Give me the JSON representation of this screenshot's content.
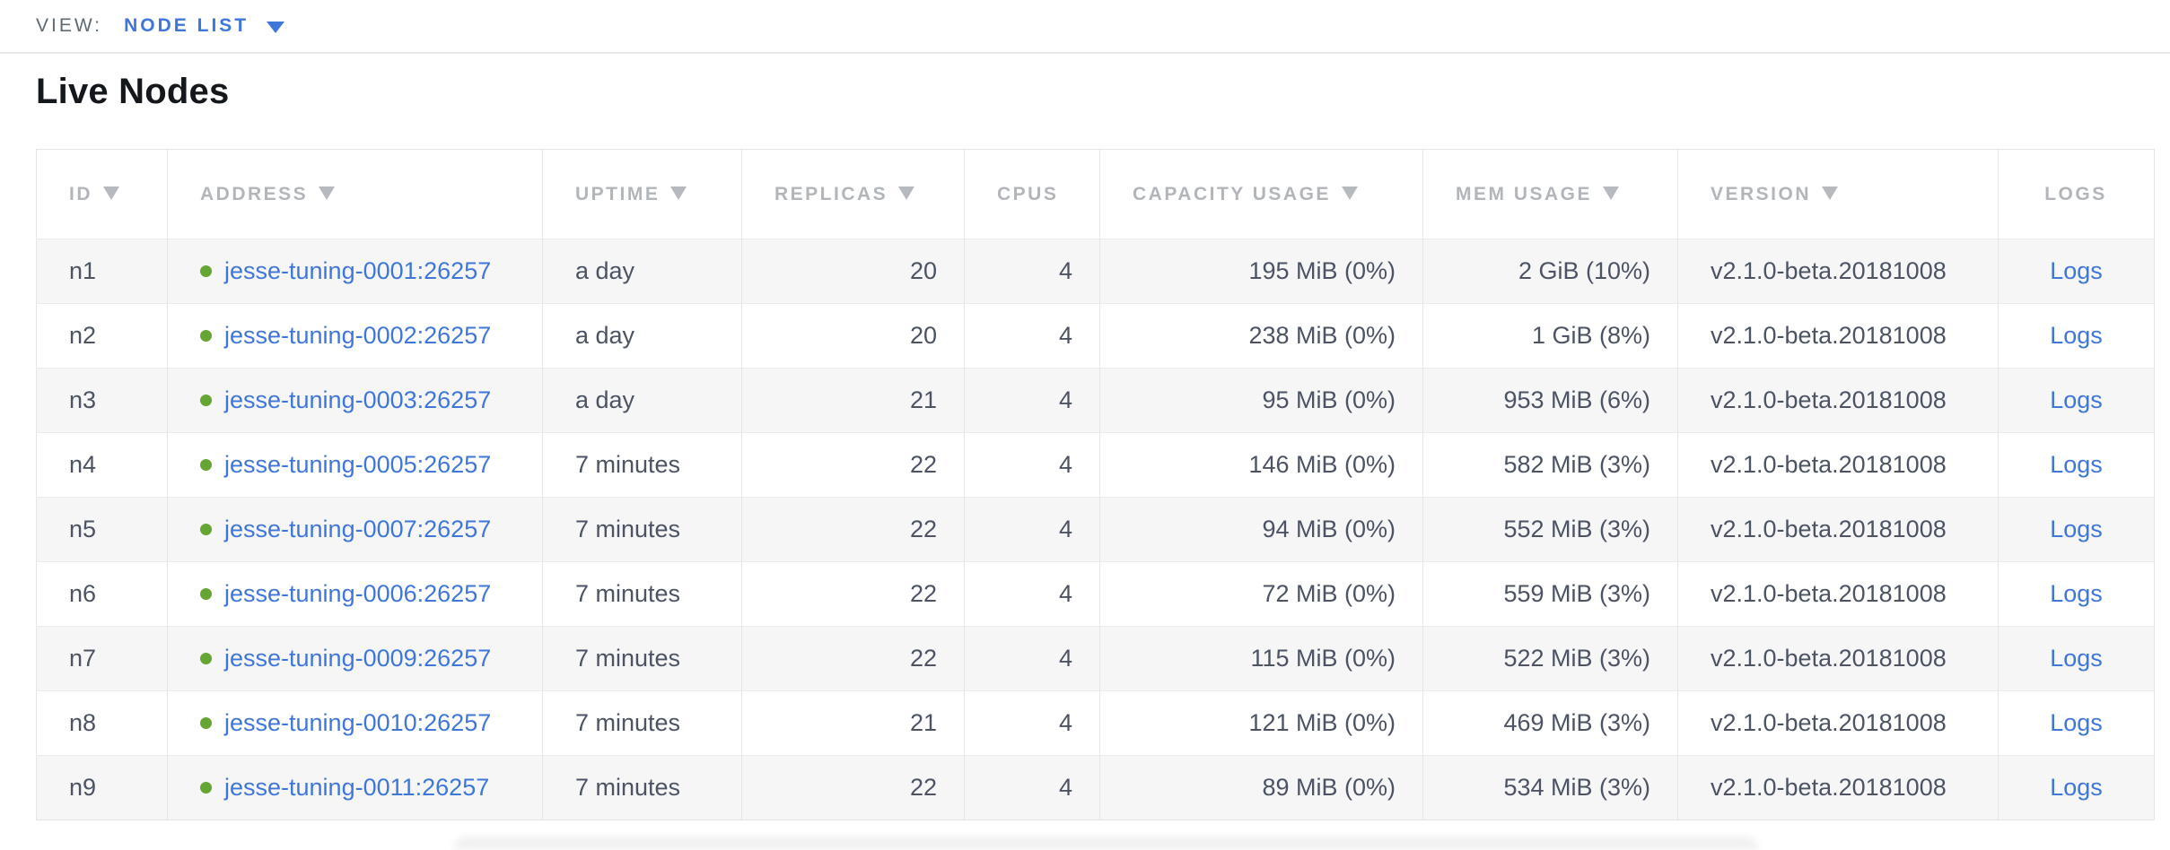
{
  "view_bar": {
    "label": "VIEW:",
    "selected": "NODE LIST"
  },
  "page": {
    "title": "Live Nodes"
  },
  "colors": {
    "accent_blue": "#3f77d9",
    "live_dot_green": "#64a534",
    "header_text": "#b2b6ba",
    "cell_text": "#4b5364",
    "row_alt_background": "#f6f6f7"
  },
  "table": {
    "columns": [
      {
        "key": "id",
        "label": "ID",
        "sortable": true,
        "cell_align": "l"
      },
      {
        "key": "address",
        "label": "ADDRESS",
        "sortable": true,
        "cell_align": "l"
      },
      {
        "key": "uptime",
        "label": "UPTIME",
        "sortable": true,
        "cell_align": "l"
      },
      {
        "key": "replicas",
        "label": "REPLICAS",
        "sortable": true,
        "cell_align": "r"
      },
      {
        "key": "cpus",
        "label": "CPUS",
        "sortable": false,
        "cell_align": "r"
      },
      {
        "key": "capacity",
        "label": "CAPACITY USAGE",
        "sortable": true,
        "cell_align": "r"
      },
      {
        "key": "mem",
        "label": "MEM USAGE",
        "sortable": true,
        "cell_align": "r"
      },
      {
        "key": "version",
        "label": "VERSION",
        "sortable": true,
        "cell_align": "l"
      },
      {
        "key": "logs",
        "label": "LOGS",
        "sortable": false,
        "cell_align": "c"
      }
    ],
    "rows": [
      {
        "id": "n1",
        "status": "live",
        "address": "jesse-tuning-0001:26257",
        "uptime": "a day",
        "replicas": "20",
        "cpus": "4",
        "capacity": "195 MiB (0%)",
        "mem": "2 GiB (10%)",
        "version": "v2.1.0-beta.20181008",
        "logs": "Logs"
      },
      {
        "id": "n2",
        "status": "live",
        "address": "jesse-tuning-0002:26257",
        "uptime": "a day",
        "replicas": "20",
        "cpus": "4",
        "capacity": "238 MiB (0%)",
        "mem": "1 GiB (8%)",
        "version": "v2.1.0-beta.20181008",
        "logs": "Logs"
      },
      {
        "id": "n3",
        "status": "live",
        "address": "jesse-tuning-0003:26257",
        "uptime": "a day",
        "replicas": "21",
        "cpus": "4",
        "capacity": "95 MiB (0%)",
        "mem": "953 MiB (6%)",
        "version": "v2.1.0-beta.20181008",
        "logs": "Logs"
      },
      {
        "id": "n4",
        "status": "live",
        "address": "jesse-tuning-0005:26257",
        "uptime": "7 minutes",
        "replicas": "22",
        "cpus": "4",
        "capacity": "146 MiB (0%)",
        "mem": "582 MiB (3%)",
        "version": "v2.1.0-beta.20181008",
        "logs": "Logs"
      },
      {
        "id": "n5",
        "status": "live",
        "address": "jesse-tuning-0007:26257",
        "uptime": "7 minutes",
        "replicas": "22",
        "cpus": "4",
        "capacity": "94 MiB (0%)",
        "mem": "552 MiB (3%)",
        "version": "v2.1.0-beta.20181008",
        "logs": "Logs"
      },
      {
        "id": "n6",
        "status": "live",
        "address": "jesse-tuning-0006:26257",
        "uptime": "7 minutes",
        "replicas": "22",
        "cpus": "4",
        "capacity": "72 MiB (0%)",
        "mem": "559 MiB (3%)",
        "version": "v2.1.0-beta.20181008",
        "logs": "Logs"
      },
      {
        "id": "n7",
        "status": "live",
        "address": "jesse-tuning-0009:26257",
        "uptime": "7 minutes",
        "replicas": "22",
        "cpus": "4",
        "capacity": "115 MiB (0%)",
        "mem": "522 MiB (3%)",
        "version": "v2.1.0-beta.20181008",
        "logs": "Logs"
      },
      {
        "id": "n8",
        "status": "live",
        "address": "jesse-tuning-0010:26257",
        "uptime": "7 minutes",
        "replicas": "21",
        "cpus": "4",
        "capacity": "121 MiB (0%)",
        "mem": "469 MiB (3%)",
        "version": "v2.1.0-beta.20181008",
        "logs": "Logs"
      },
      {
        "id": "n9",
        "status": "live",
        "address": "jesse-tuning-0011:26257",
        "uptime": "7 minutes",
        "replicas": "22",
        "cpus": "4",
        "capacity": "89 MiB (0%)",
        "mem": "534 MiB (3%)",
        "version": "v2.1.0-beta.20181008",
        "logs": "Logs"
      }
    ]
  }
}
